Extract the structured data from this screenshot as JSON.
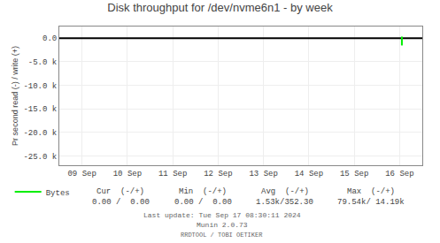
{
  "chart_data": {
    "type": "line",
    "title": "Disk throughput for /dev/nvme6n1 - by week",
    "ylabel": "Pr second read (-) / write (+)",
    "xlim": [
      0,
      8
    ],
    "xticks": [
      {
        "value": 0.5,
        "label": "09 Sep"
      },
      {
        "value": 1.5,
        "label": "10 Sep"
      },
      {
        "value": 2.5,
        "label": "11 Sep"
      },
      {
        "value": 3.5,
        "label": "12 Sep"
      },
      {
        "value": 4.5,
        "label": "13 Sep"
      },
      {
        "value": 5.5,
        "label": "14 Sep"
      },
      {
        "value": 6.5,
        "label": "15 Sep"
      },
      {
        "value": 7.5,
        "label": "16 Sep"
      }
    ],
    "ylim": [
      -27000,
      2500
    ],
    "yticks": [
      {
        "value": 0,
        "label": "0.0"
      },
      {
        "value": -5000,
        "label": "-5.0 k"
      },
      {
        "value": -10000,
        "label": "-10.0 k"
      },
      {
        "value": -15000,
        "label": "-15.0 k"
      },
      {
        "value": -20000,
        "label": "-20.0 k"
      },
      {
        "value": -25000,
        "label": "-25.0 k"
      }
    ],
    "grid": true,
    "legend": "bottom",
    "series": [
      {
        "x": [
          0,
          8
        ],
        "values": [
          0,
          0
        ],
        "color": "#000000"
      },
      {
        "name": "Bytes",
        "x": [
          7.55,
          7.55
        ],
        "values": [
          -1530,
          352.3
        ],
        "color": "#00ee00"
      }
    ],
    "annotations": [
      [
        "Cur  (-/+)",
        "Min  (-/+)",
        "Avg  (-/+)",
        "Max  (-/+)"
      ],
      [
        "0.00 /  0.00",
        "0.00 /  0.00",
        "1.53k/352.30",
        "79.54k/ 14.19k"
      ],
      [
        "Last update: Tue Sep 17 08:30:11 2024"
      ],
      [
        "Munin 2.0.73"
      ],
      [
        "RRDTOOL / TOBI OETIKER"
      ]
    ]
  }
}
